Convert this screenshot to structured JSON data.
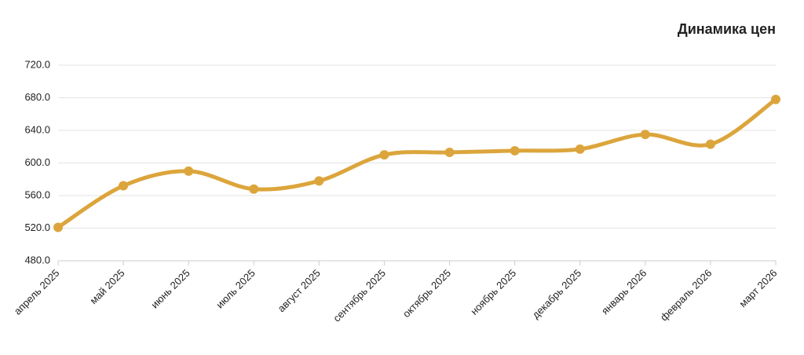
{
  "chart_data": {
    "type": "line",
    "title": "Динамика цен",
    "categories": [
      "апрель 2025",
      "май 2025",
      "июнь 2025",
      "июль 2025",
      "август 2025",
      "сентябрь 2025",
      "октябрь 2025",
      "ноябрь 2025",
      "декабрь 2025",
      "январь 2026",
      "февраль 2026",
      "март 2026"
    ],
    "values": [
      521,
      572,
      590,
      568,
      578,
      610,
      613,
      615,
      617,
      635,
      623,
      678
    ],
    "color": "#dca53c",
    "ylim": [
      480,
      720
    ],
    "yticks": [
      {
        "value": 480,
        "label": "480.0"
      },
      {
        "value": 520,
        "label": "520.0"
      },
      {
        "value": 560,
        "label": "560.0"
      },
      {
        "value": 600,
        "label": "600.0"
      },
      {
        "value": 640,
        "label": "640.0"
      },
      {
        "value": 680,
        "label": "680.0"
      },
      {
        "value": 720,
        "label": "720.0"
      }
    ],
    "grid": true,
    "smooth": true
  }
}
